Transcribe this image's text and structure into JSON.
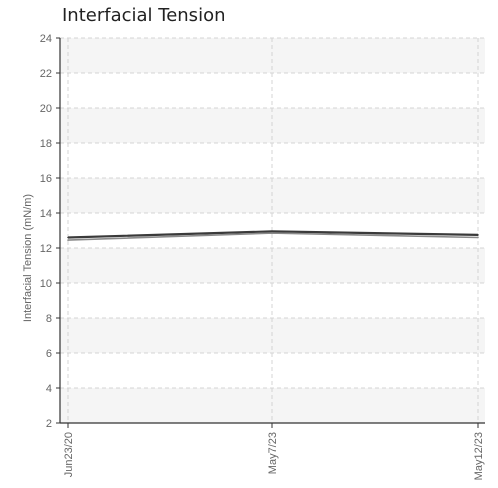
{
  "chart_data": {
    "type": "line",
    "title": "Interfacial Tension",
    "xlabel": "",
    "ylabel": "Interfacial Tension (mN/m)",
    "ylim": [
      2,
      24
    ],
    "yticks": [
      2,
      4,
      6,
      8,
      10,
      12,
      14,
      16,
      18,
      20,
      22,
      24
    ],
    "grid": true,
    "categories": [
      "Jun23/20",
      "May7/23",
      "May12/23"
    ],
    "series": [
      {
        "values": [
          12.6,
          12.95,
          12.75
        ]
      },
      {
        "values": [
          12.45,
          12.85,
          12.6
        ]
      }
    ],
    "colors": {
      "series": [
        "#3a3a3a",
        "#8a8a8a"
      ],
      "band": "#f5f5f5",
      "grid": "#d4d4d4",
      "axis": "#333333"
    }
  }
}
